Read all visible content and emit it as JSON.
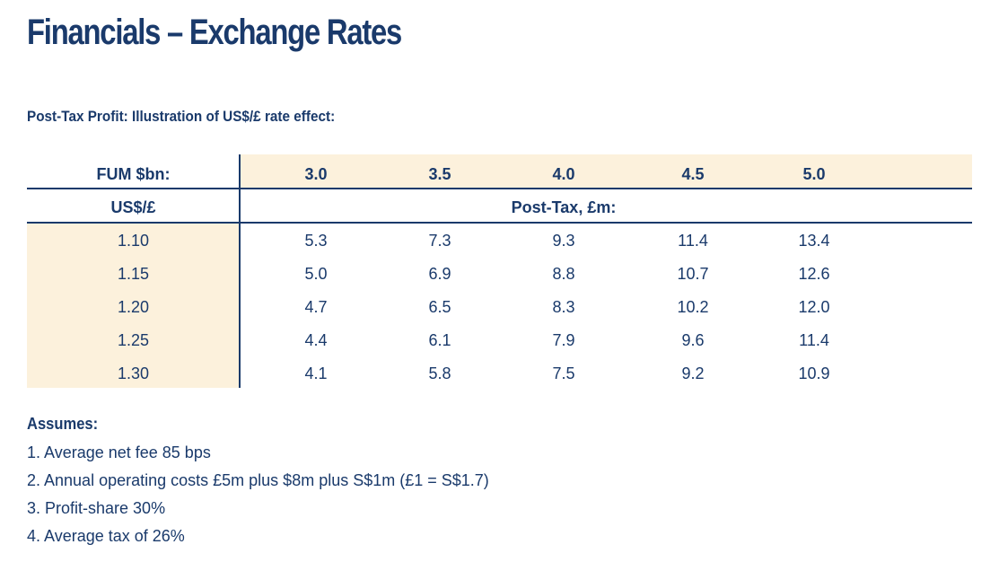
{
  "title": "Financials – Exchange Rates",
  "subtitle": "Post-Tax Profit: Illustration of US$/£ rate effect:",
  "table": {
    "fum_label": "FUM $bn:",
    "fum_values": [
      "3.0",
      "3.5",
      "4.0",
      "4.5",
      "5.0"
    ],
    "rate_label": "US$/£",
    "post_tax_label": "Post-Tax, £m:",
    "rows": [
      {
        "rate": "1.10",
        "values": [
          "5.3",
          "7.3",
          "9.3",
          "11.4",
          "13.4"
        ]
      },
      {
        "rate": "1.15",
        "values": [
          "5.0",
          "6.9",
          "8.8",
          "10.7",
          "12.6"
        ]
      },
      {
        "rate": "1.20",
        "values": [
          "4.7",
          "6.5",
          "8.3",
          "10.2",
          "12.0"
        ]
      },
      {
        "rate": "1.25",
        "values": [
          "4.4",
          "6.1",
          "7.9",
          "9.6",
          "11.4"
        ]
      },
      {
        "rate": "1.30",
        "values": [
          "4.1",
          "5.8",
          "7.5",
          "9.2",
          "10.9"
        ]
      }
    ]
  },
  "assumes": {
    "heading": "Assumes:",
    "items": [
      "1. Average net fee 85 bps",
      "2. Annual operating costs £5m plus $8m plus S$1m (£1 = S$1.7)",
      "3. Profit-share 30%",
      "4. Average tax of 26%"
    ]
  },
  "colors": {
    "text": "#1a3a6b",
    "shade": "#fcf1dc"
  }
}
